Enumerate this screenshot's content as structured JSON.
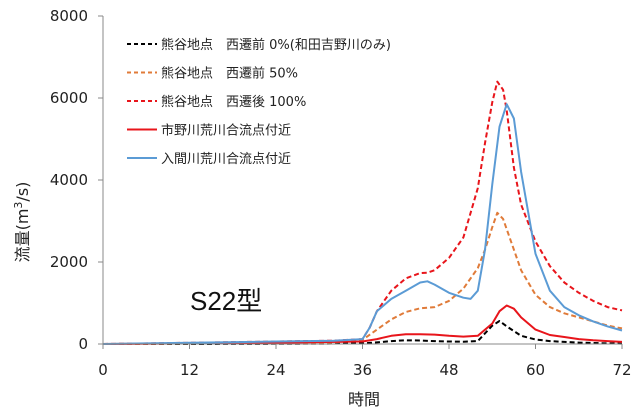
{
  "chart_data": {
    "type": "line",
    "xlabel": "時間",
    "ylabel_main": "流量(m",
    "ylabel_sup": "3",
    "ylabel_end": "/s)",
    "xlim": [
      0,
      72
    ],
    "ylim": [
      0,
      8000
    ],
    "x_ticks": [
      "0",
      "12",
      "24",
      "36",
      "48",
      "60",
      "72"
    ],
    "y_ticks": [
      "0",
      "2000",
      "4000",
      "6000",
      "8000"
    ],
    "x_tick_values": [
      0,
      12,
      24,
      36,
      48,
      60,
      72
    ],
    "y_tick_values": [
      0,
      2000,
      4000,
      6000,
      8000
    ],
    "grid": false,
    "legend_position": "top-left",
    "annotation": "S22型",
    "series": [
      {
        "name": "熊谷地点　西遷前 0%(和田吉野川のみ)",
        "color": "#000000",
        "dash": "dashed",
        "x": [
          0,
          12,
          24,
          36,
          38,
          40,
          42,
          44,
          46,
          48,
          50,
          52,
          54,
          55,
          56,
          58,
          60,
          62,
          64,
          66,
          68,
          70,
          72
        ],
        "y": [
          0,
          0,
          5,
          15,
          40,
          70,
          90,
          85,
          70,
          60,
          55,
          70,
          450,
          560,
          430,
          200,
          110,
          70,
          50,
          35,
          25,
          15,
          10
        ]
      },
      {
        "name": "熊谷地点　西遷前 50%",
        "color": "#e07b39",
        "dash": "dashed",
        "x": [
          0,
          12,
          24,
          32,
          36,
          38,
          40,
          42,
          44,
          46,
          48,
          50,
          52,
          53,
          54,
          54.7,
          55.5,
          56,
          58,
          60,
          62,
          64,
          66,
          68,
          70,
          72
        ],
        "y": [
          0,
          10,
          30,
          40,
          100,
          350,
          600,
          780,
          870,
          900,
          1050,
          1350,
          1850,
          2300,
          2850,
          3200,
          3050,
          2800,
          1800,
          1200,
          900,
          750,
          650,
          550,
          450,
          380
        ]
      },
      {
        "name": "熊谷地点　西遷後 100%",
        "color": "#e8151b",
        "dash": "dashed",
        "x": [
          0,
          12,
          24,
          32,
          36,
          37,
          38,
          40,
          42,
          44,
          45,
          46,
          48,
          50,
          52,
          53,
          54,
          54.7,
          55.5,
          56,
          57,
          58,
          60,
          62,
          64,
          66,
          68,
          70,
          72
        ],
        "y": [
          0,
          30,
          60,
          80,
          120,
          400,
          800,
          1300,
          1600,
          1730,
          1740,
          1800,
          2100,
          2600,
          3800,
          4900,
          5900,
          6400,
          6200,
          5700,
          4300,
          3400,
          2500,
          1900,
          1500,
          1250,
          1050,
          900,
          820
        ]
      },
      {
        "name": "市野川荒川合流点付近",
        "color": "#e8151b",
        "dash": "solid",
        "x": [
          0,
          12,
          24,
          36,
          38,
          40,
          42,
          44,
          46,
          48,
          50,
          52,
          54,
          55,
          56,
          57,
          58,
          60,
          62,
          64,
          66,
          68,
          70,
          72
        ],
        "y": [
          0,
          15,
          30,
          60,
          120,
          200,
          240,
          240,
          230,
          200,
          180,
          200,
          500,
          800,
          940,
          860,
          650,
          350,
          220,
          170,
          120,
          90,
          70,
          50
        ]
      },
      {
        "name": "入間川荒川合流点付近",
        "color": "#5b9bd5",
        "dash": "solid",
        "x": [
          0,
          12,
          24,
          32,
          36,
          37,
          38,
          40,
          42,
          44,
          45,
          46,
          48,
          50,
          51,
          52,
          53,
          54,
          55,
          56,
          57,
          58,
          60,
          62,
          64,
          66,
          68,
          70,
          72
        ],
        "y": [
          0,
          30,
          60,
          80,
          120,
          400,
          800,
          1100,
          1300,
          1500,
          1530,
          1450,
          1250,
          1130,
          1100,
          1300,
          2300,
          3900,
          5300,
          5850,
          5500,
          4200,
          2200,
          1300,
          900,
          700,
          550,
          430,
          330
        ]
      }
    ]
  }
}
